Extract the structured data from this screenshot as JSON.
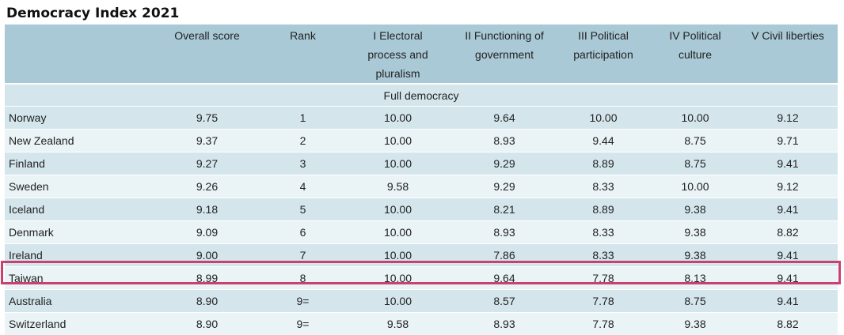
{
  "title": "Democracy Index 2021",
  "headers": {
    "country": "",
    "overall_score": "Overall score",
    "rank": "Rank",
    "electoral": "I Electoral process and pluralism",
    "functioning": "II Functioning of government",
    "participation": "III Political participation",
    "culture": "IV Political culture",
    "civil": "V Civil liberties"
  },
  "group_label": "Full democracy",
  "rows": [
    {
      "country": "Norway",
      "score": "9.75",
      "rank": "1",
      "electoral": "10.00",
      "functioning": "9.64",
      "participation": "10.00",
      "culture": "10.00",
      "civil": "9.12"
    },
    {
      "country": "New Zealand",
      "score": "9.37",
      "rank": "2",
      "electoral": "10.00",
      "functioning": "8.93",
      "participation": "9.44",
      "culture": "8.75",
      "civil": "9.71"
    },
    {
      "country": "Finland",
      "score": "9.27",
      "rank": "3",
      "electoral": "10.00",
      "functioning": "9.29",
      "participation": "8.89",
      "culture": "8.75",
      "civil": "9.41"
    },
    {
      "country": "Sweden",
      "score": "9.26",
      "rank": "4",
      "electoral": "9.58",
      "functioning": "9.29",
      "participation": "8.33",
      "culture": "10.00",
      "civil": "9.12"
    },
    {
      "country": "Iceland",
      "score": "9.18",
      "rank": "5",
      "electoral": "10.00",
      "functioning": "8.21",
      "participation": "8.89",
      "culture": "9.38",
      "civil": "9.41"
    },
    {
      "country": "Denmark",
      "score": "9.09",
      "rank": "6",
      "electoral": "10.00",
      "functioning": "8.93",
      "participation": "8.33",
      "culture": "9.38",
      "civil": "8.82"
    },
    {
      "country": "Ireland",
      "score": "9.00",
      "rank": "7",
      "electoral": "10.00",
      "functioning": "7.86",
      "participation": "8.33",
      "culture": "9.38",
      "civil": "9.41"
    },
    {
      "country": "Taiwan",
      "score": "8.99",
      "rank": "8",
      "electoral": "10.00",
      "functioning": "9.64",
      "participation": "7.78",
      "culture": "8.13",
      "civil": "9.41"
    },
    {
      "country": "Australia",
      "score": "8.90",
      "rank": "9=",
      "electoral": "10.00",
      "functioning": "8.57",
      "participation": "7.78",
      "culture": "8.75",
      "civil": "9.41"
    },
    {
      "country": "Switzerland",
      "score": "8.90",
      "rank": "9=",
      "electoral": "9.58",
      "functioning": "8.93",
      "participation": "7.78",
      "culture": "9.38",
      "civil": "8.82"
    }
  ],
  "highlight_color": "#c8416f"
}
